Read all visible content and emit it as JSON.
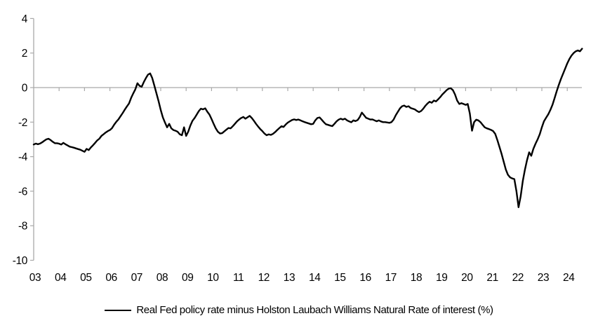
{
  "chart_data": {
    "type": "line",
    "title": "",
    "legend": "Real Fed policy rate minus Holston Laubach Williams Natural Rate of interest (%)",
    "legend_position": "bottom",
    "x_start_year": 2003,
    "frequency": "monthly",
    "x_tick_labels": [
      "03",
      "04",
      "05",
      "06",
      "07",
      "08",
      "09",
      "10",
      "11",
      "12",
      "13",
      "14",
      "15",
      "16",
      "17",
      "18",
      "19",
      "20",
      "21",
      "22",
      "23",
      "24"
    ],
    "y_ticks": [
      4,
      2,
      0,
      -2,
      -4,
      -6,
      -8,
      -10
    ],
    "ylim": [
      -10,
      4
    ],
    "grid": "zero-line-only",
    "colors": {
      "line": "#000000",
      "axis": "#a9a9a9",
      "text": "#000000",
      "background": "#ffffff"
    },
    "series": [
      {
        "name": "Real Fed policy rate minus Holston Laubach Williams Natural Rate of interest (%)",
        "color": "#000000",
        "values": [
          -3.3,
          -3.24,
          -3.28,
          -3.24,
          -3.17,
          -3.08,
          -3.0,
          -2.96,
          -3.04,
          -3.14,
          -3.22,
          -3.22,
          -3.25,
          -3.3,
          -3.2,
          -3.28,
          -3.35,
          -3.42,
          -3.45,
          -3.48,
          -3.52,
          -3.56,
          -3.6,
          -3.66,
          -3.72,
          -3.55,
          -3.62,
          -3.47,
          -3.34,
          -3.2,
          -3.06,
          -2.96,
          -2.8,
          -2.7,
          -2.6,
          -2.52,
          -2.46,
          -2.35,
          -2.15,
          -1.98,
          -1.84,
          -1.66,
          -1.48,
          -1.28,
          -1.1,
          -0.92,
          -0.6,
          -0.34,
          -0.1,
          0.25,
          0.1,
          0.05,
          0.32,
          0.55,
          0.75,
          0.82,
          0.55,
          0.1,
          -0.35,
          -0.8,
          -1.3,
          -1.72,
          -2.02,
          -2.3,
          -2.1,
          -2.36,
          -2.46,
          -2.5,
          -2.56,
          -2.7,
          -2.76,
          -2.3,
          -2.8,
          -2.55,
          -2.2,
          -1.92,
          -1.76,
          -1.56,
          -1.36,
          -1.22,
          -1.26,
          -1.2,
          -1.4,
          -1.56,
          -1.82,
          -2.1,
          -2.36,
          -2.56,
          -2.66,
          -2.64,
          -2.54,
          -2.44,
          -2.34,
          -2.36,
          -2.24,
          -2.1,
          -1.96,
          -1.85,
          -1.76,
          -1.7,
          -1.8,
          -1.72,
          -1.64,
          -1.76,
          -1.92,
          -2.1,
          -2.26,
          -2.4,
          -2.52,
          -2.66,
          -2.76,
          -2.71,
          -2.74,
          -2.68,
          -2.58,
          -2.46,
          -2.35,
          -2.24,
          -2.28,
          -2.14,
          -2.03,
          -1.95,
          -1.88,
          -1.84,
          -1.88,
          -1.85,
          -1.9,
          -1.95,
          -2.0,
          -2.04,
          -2.08,
          -2.12,
          -2.1,
          -1.9,
          -1.76,
          -1.73,
          -1.86,
          -2.0,
          -2.12,
          -2.16,
          -2.2,
          -2.23,
          -2.1,
          -1.96,
          -1.86,
          -1.8,
          -1.85,
          -1.8,
          -1.9,
          -1.96,
          -2.01,
          -1.9,
          -1.94,
          -1.88,
          -1.7,
          -1.45,
          -1.6,
          -1.75,
          -1.8,
          -1.85,
          -1.84,
          -1.9,
          -1.95,
          -1.9,
          -1.96,
          -2.0,
          -2.0,
          -2.02,
          -2.04,
          -2.0,
          -1.85,
          -1.6,
          -1.4,
          -1.2,
          -1.08,
          -1.04,
          -1.12,
          -1.08,
          -1.18,
          -1.22,
          -1.26,
          -1.35,
          -1.42,
          -1.35,
          -1.22,
          -1.05,
          -0.92,
          -0.82,
          -0.88,
          -0.75,
          -0.8,
          -0.68,
          -0.55,
          -0.4,
          -0.28,
          -0.15,
          -0.06,
          -0.04,
          -0.15,
          -0.4,
          -0.75,
          -0.95,
          -0.9,
          -0.95,
          -1.0,
          -0.95,
          -1.5,
          -2.5,
          -2.0,
          -1.86,
          -1.9,
          -2.0,
          -2.15,
          -2.3,
          -2.36,
          -2.4,
          -2.45,
          -2.52,
          -2.68,
          -3.05,
          -3.45,
          -3.85,
          -4.3,
          -4.75,
          -5.05,
          -5.2,
          -5.26,
          -5.3,
          -6.0,
          -6.93,
          -6.3,
          -5.4,
          -4.75,
          -4.2,
          -3.75,
          -3.95,
          -3.55,
          -3.25,
          -3.0,
          -2.7,
          -2.3,
          -1.95,
          -1.75,
          -1.55,
          -1.3,
          -1.0,
          -0.62,
          -0.22,
          0.15,
          0.5,
          0.8,
          1.1,
          1.4,
          1.65,
          1.85,
          2.0,
          2.1,
          2.15,
          2.1,
          2.25
        ]
      }
    ]
  }
}
